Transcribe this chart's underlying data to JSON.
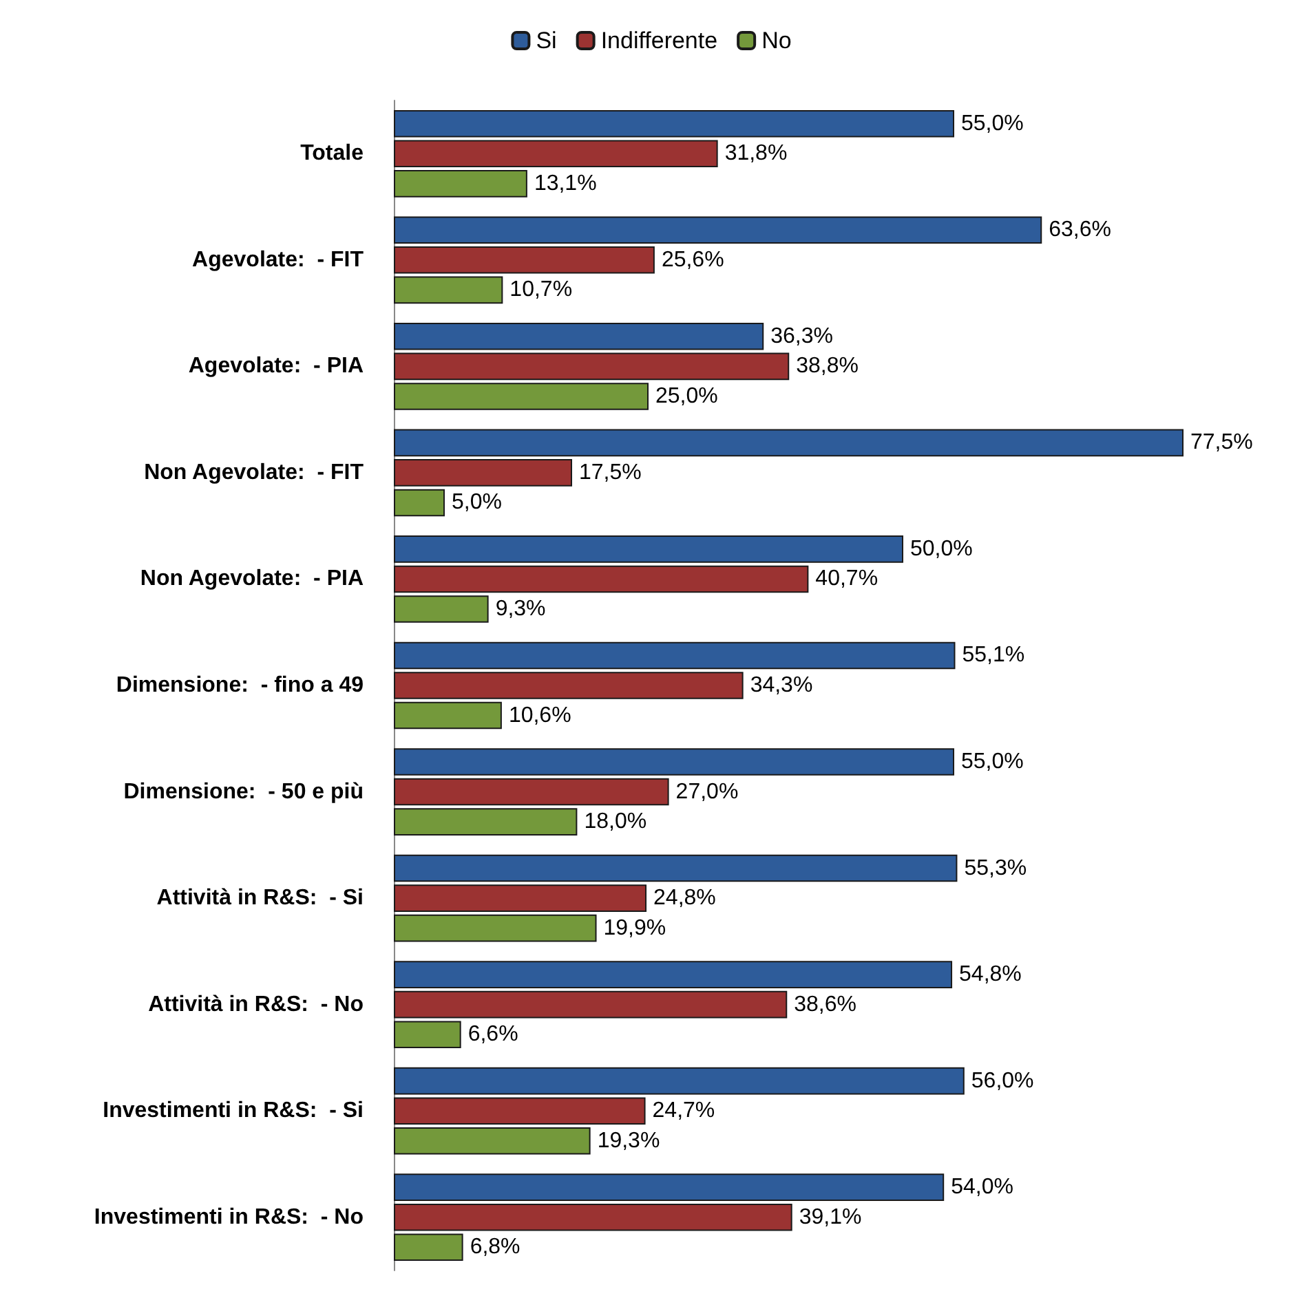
{
  "chart_data": {
    "type": "bar",
    "orientation": "horizontal",
    "legend": "top",
    "categories": [
      "Totale",
      "Agevolate:  - FIT",
      "Agevolate:  - PIA",
      "Non Agevolate:  - FIT",
      "Non Agevolate:  - PIA",
      "Dimensione:  - fino a 49",
      "Dimensione:  - 50 e più",
      "Attività in R&S:  - Si",
      "Attività in R&S:  - No",
      "Investimenti in R&S:  - Si",
      "Investimenti in R&S:  - No"
    ],
    "series": [
      {
        "name": "Si",
        "color": "#2e5c9a",
        "values": [
          55.0,
          63.6,
          36.3,
          77.5,
          50.0,
          55.1,
          55.0,
          55.3,
          54.8,
          56.0,
          54.0
        ],
        "value_labels": [
          "55,0%",
          "63,6%",
          "36,3%",
          "77,5%",
          "50,0%",
          "55,1%",
          "55,0%",
          "55,3%",
          "54,8%",
          "56,0%",
          "54,0%"
        ]
      },
      {
        "name": "Indifferente",
        "color": "#9b3332",
        "values": [
          31.8,
          25.6,
          38.8,
          17.5,
          40.7,
          34.3,
          27.0,
          24.8,
          38.6,
          24.7,
          39.1
        ],
        "value_labels": [
          "31,8%",
          "25,6%",
          "38,8%",
          "17,5%",
          "40,7%",
          "34,3%",
          "27,0%",
          "24,8%",
          "38,6%",
          "24,7%",
          "39,1%"
        ]
      },
      {
        "name": "No",
        "color": "#74993b",
        "values": [
          13.1,
          10.7,
          25.0,
          5.0,
          9.3,
          10.6,
          18.0,
          19.9,
          6.6,
          19.3,
          6.8
        ],
        "value_labels": [
          "13,1%",
          "10,7%",
          "25,0%",
          "5,0%",
          "9,3%",
          "10,6%",
          "18,0%",
          "19,9%",
          "6,6%",
          "19,3%",
          "6,8%"
        ]
      }
    ]
  }
}
